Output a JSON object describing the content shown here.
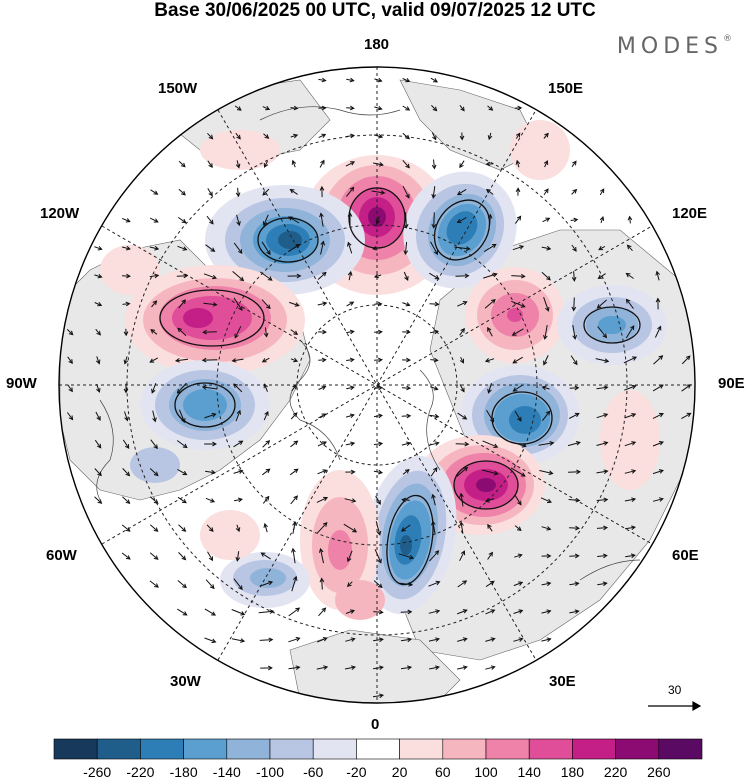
{
  "title": "Base 30/06/2025 00 UTC, valid 09/07/2025 12 UTC",
  "brand": "MODES",
  "brand_mark": "®",
  "longitude_labels": {
    "top": "180",
    "bottom": "0",
    "left": "90W",
    "right": "90E",
    "upper_left_1": "150W",
    "upper_left_2": "120W",
    "upper_right_1": "150E",
    "upper_right_2": "120E",
    "lower_left_1": "60W",
    "lower_left_2": "30W",
    "lower_right_1": "60E",
    "lower_right_2": "30E"
  },
  "vector_scale": {
    "label": "30"
  },
  "colorbar": {
    "ticks": [
      "-260",
      "-220",
      "-180",
      "-140",
      "-100",
      "-60",
      "-20",
      "20",
      "60",
      "100",
      "140",
      "180",
      "220",
      "260"
    ],
    "colors": [
      "#173a5c",
      "#1f5d8a",
      "#2d7db6",
      "#5a9fcf",
      "#8fb3d9",
      "#b8c6e3",
      "#e3e4f2",
      "#ffffff",
      "#fbdede",
      "#f6b6c0",
      "#ef82a8",
      "#e04e99",
      "#c41f86",
      "#8b0b73",
      "#5a0a63"
    ]
  },
  "map": {
    "projection": "north-polar-stereographic",
    "anomalies": [
      {
        "name": "bering-high",
        "value": 260,
        "color": "#8b0b73"
      },
      {
        "name": "alaska-west-low",
        "value": -220,
        "color": "#1f5d8a"
      },
      {
        "name": "east-siberia-low",
        "value": -220,
        "color": "#1f5d8a"
      },
      {
        "name": "canada-high",
        "value": 180,
        "color": "#c41f86"
      },
      {
        "name": "central-siberia-high",
        "value": 140,
        "color": "#e04e99"
      },
      {
        "name": "siberia-low",
        "value": -140,
        "color": "#5a9fcf"
      },
      {
        "name": "hudson-low",
        "value": -140,
        "color": "#5a9fcf"
      },
      {
        "name": "kara-low",
        "value": -180,
        "color": "#2d7db6"
      },
      {
        "name": "west-siberia-high",
        "value": 260,
        "color": "#8b0b73"
      },
      {
        "name": "scandinavia-low",
        "value": -220,
        "color": "#1f5d8a"
      },
      {
        "name": "greenland-high",
        "value": 100,
        "color": "#f6b6c0"
      },
      {
        "name": "atlantic-low",
        "value": -100,
        "color": "#8fb3d9"
      }
    ]
  }
}
